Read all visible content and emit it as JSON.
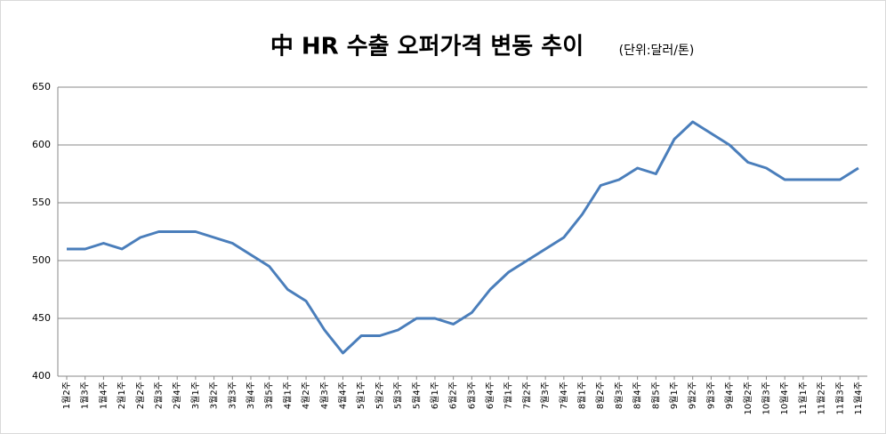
{
  "chart_data": {
    "type": "line",
    "title": "中 HR 수출 오퍼가격 변동 추이",
    "subtitle": "(단위:달러/톤)",
    "categories": [
      "1월2주",
      "1월3주",
      "1월4주",
      "2월1주",
      "2월2주",
      "2월3주",
      "2월4주",
      "3월1주",
      "3월2주",
      "3월3주",
      "3월4주",
      "3월5주",
      "4월1주",
      "4월2주",
      "4월3주",
      "4월4주",
      "5월1주",
      "5월2주",
      "5월3주",
      "5월4주",
      "6월1주",
      "6월2주",
      "6월3주",
      "6월4주",
      "7월1주",
      "7월2주",
      "7월3주",
      "7월4주",
      "8월1주",
      "8월2주",
      "8월3주",
      "8월4주",
      "8월5주",
      "9월1주",
      "9월2주",
      "9월3주",
      "9월4주",
      "10월2주",
      "10월3주",
      "10월4주",
      "11월1주",
      "11월2주",
      "11월3주",
      "11월4주"
    ],
    "values": [
      510,
      510,
      515,
      510,
      520,
      525,
      525,
      525,
      520,
      515,
      505,
      495,
      475,
      465,
      440,
      420,
      435,
      435,
      440,
      450,
      450,
      445,
      455,
      475,
      490,
      500,
      510,
      520,
      540,
      565,
      570,
      580,
      575,
      605,
      620,
      610,
      600,
      585,
      580,
      570,
      570,
      570,
      570,
      580
    ],
    "color": "#4a7ebb",
    "ylim": [
      400,
      650
    ],
    "yticks": [
      400,
      450,
      500,
      550,
      600,
      650
    ],
    "grid": true
  }
}
